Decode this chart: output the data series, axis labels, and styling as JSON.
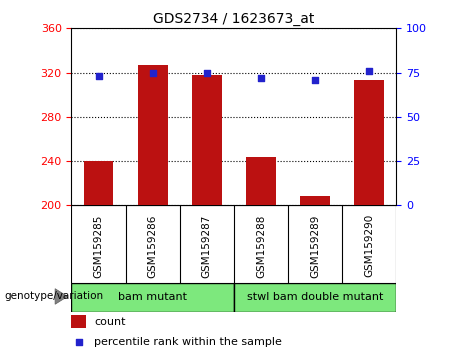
{
  "title": "GDS2734 / 1623673_at",
  "categories": [
    "GSM159285",
    "GSM159286",
    "GSM159287",
    "GSM159288",
    "GSM159289",
    "GSM159290"
  ],
  "counts": [
    240,
    327,
    318,
    244,
    208,
    313
  ],
  "percentile_ranks": [
    73,
    75,
    75,
    72,
    71,
    76
  ],
  "ylim_left": [
    200,
    360
  ],
  "ylim_right": [
    0,
    100
  ],
  "yticks_left": [
    200,
    240,
    280,
    320,
    360
  ],
  "yticks_right": [
    0,
    25,
    50,
    75,
    100
  ],
  "bar_color": "#bb1111",
  "dot_color": "#2222cc",
  "groups": [
    {
      "label": "bam mutant",
      "start": 0,
      "end": 2
    },
    {
      "label": "stwl bam double mutant",
      "start": 3,
      "end": 5
    }
  ],
  "group_color": "#7de87d",
  "tick_area_color": "#c8c8c8",
  "genotype_label": "genotype/variation",
  "legend_count_label": "count",
  "legend_percentile_label": "percentile rank within the sample",
  "background_color": "#ffffff",
  "grid_color": "#000000"
}
